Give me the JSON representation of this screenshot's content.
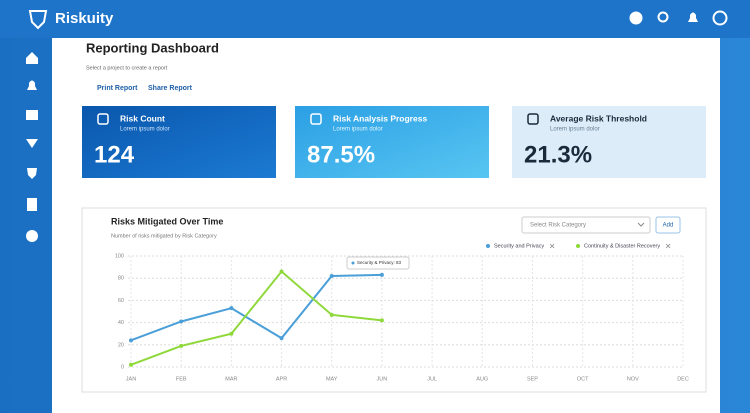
{
  "header": {
    "brand": "Riskuity"
  },
  "page": {
    "title": "Reporting Dashboard",
    "subtitle": "Select a project to create a report",
    "actions": [
      "Print Report",
      "Share Report"
    ]
  },
  "cards": [
    {
      "label": "Risk Count",
      "sublabel": "Lorem ipsum dolor",
      "value": "124"
    },
    {
      "label": "Risk Analysis Progress",
      "sublabel": "Lorem ipsum dolor",
      "value": "87.5%"
    },
    {
      "label": "Average Risk Threshold",
      "sublabel": "Lorem ipsum dolor",
      "value": "21.3%"
    }
  ],
  "chart_panel": {
    "select_placeholder": "Select Risk Category",
    "add_button": "Add",
    "tooltip": "Security & Privacy: 83"
  },
  "chart_data": {
    "type": "line",
    "title": "Risks Mitigated Over Time",
    "subtitle": "Number of risks mitigated by Risk Category",
    "categories": [
      "JAN",
      "FEB",
      "MAR",
      "APR",
      "MAY",
      "JUN",
      "JUL",
      "AUG",
      "SEP",
      "OCT",
      "NOV",
      "DEC"
    ],
    "series": [
      {
        "name": "Security and Privacy",
        "color": "#4a9fd8",
        "values": [
          24,
          41,
          53,
          26,
          82,
          83,
          null,
          null,
          null,
          null,
          null,
          null
        ]
      },
      {
        "name": "Continuity & Disaster Recovery",
        "color": "#8ed83a",
        "values": [
          2,
          19,
          30,
          86,
          47,
          42,
          null,
          null,
          null,
          null,
          null,
          null
        ]
      }
    ],
    "ylim": [
      0,
      100
    ],
    "yticks": [
      0,
      20,
      40,
      60,
      80,
      100
    ],
    "grid": true,
    "legend": "top-right"
  }
}
